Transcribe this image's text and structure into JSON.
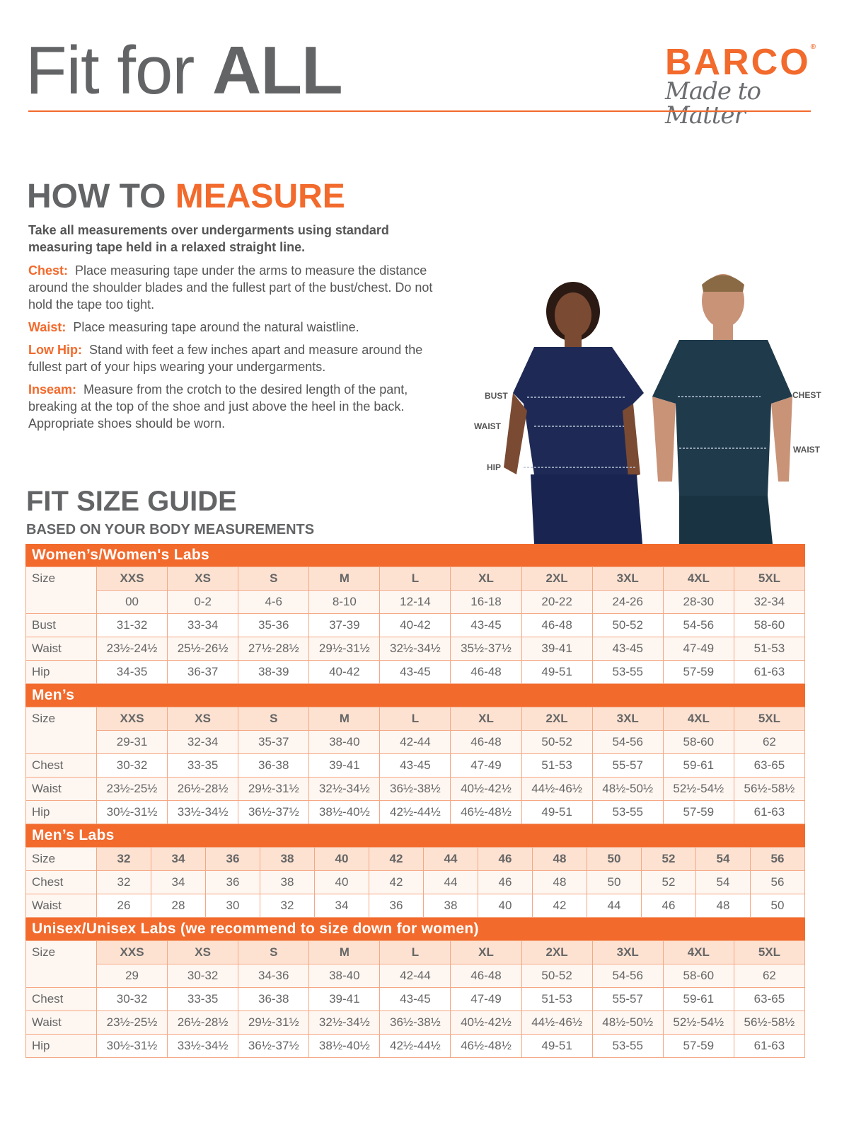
{
  "header": {
    "title_light": "Fit for ",
    "title_bold": "ALL",
    "logo_brand": "BARCO",
    "logo_reg": "®",
    "logo_tagline": "Made to Matter"
  },
  "colors": {
    "accent": "#f26a2c",
    "text": "#636466"
  },
  "how_to_measure": {
    "title_gray": "HOW TO ",
    "title_orange": "MEASURE",
    "intro": "Take all measurements over undergarments using standard measuring tape held in a relaxed straight line.",
    "items": [
      {
        "key": "Chest:",
        "text": "Place measuring tape under the arms to measure the distance around the shoulder blades and the fullest part of the bust/chest. Do not hold the tape too tight."
      },
      {
        "key": "Waist:",
        "text": "Place measuring tape around the natural waistline."
      },
      {
        "key": "Low Hip:",
        "text": "Stand with feet a few inches apart and measure around the fullest part of your hips wearing your undergarments."
      },
      {
        "key": "Inseam:",
        "text": "Measure from the crotch to the desired length of the pant, breaking at the top of the shoe and just above the heel in the back. Appropriate shoes should be worn."
      }
    ]
  },
  "figure_labels": {
    "bust": "BUST",
    "waist_w": "WAIST",
    "hip": "HIP",
    "chest": "CHEST",
    "waist_m": "WAIST"
  },
  "size_guide": {
    "title": "FIT SIZE GUIDE",
    "subtitle": "BASED ON YOUR BODY MEASUREMENTS"
  },
  "tables": [
    {
      "title": "Women’s/Women's Labs",
      "size_label": "Size",
      "sizes": [
        "XXS",
        "XS",
        "S",
        "M",
        "L",
        "XL",
        "2XL",
        "3XL",
        "4XL",
        "5XL"
      ],
      "numeric": [
        "00",
        "0-2",
        "4-6",
        "8-10",
        "12-14",
        "16-18",
        "20-22",
        "24-26",
        "28-30",
        "32-34"
      ],
      "rows": [
        {
          "label": "Bust",
          "values": [
            "31-32",
            "33-34",
            "35-36",
            "37-39",
            "40-42",
            "43-45",
            "46-48",
            "50-52",
            "54-56",
            "58-60"
          ]
        },
        {
          "label": "Waist",
          "values": [
            "23½-24½",
            "25½-26½",
            "27½-28½",
            "29½-31½",
            "32½-34½",
            "35½-37½",
            "39-41",
            "43-45",
            "47-49",
            "51-53"
          ]
        },
        {
          "label": "Hip",
          "values": [
            "34-35",
            "36-37",
            "38-39",
            "40-42",
            "43-45",
            "46-48",
            "49-51",
            "53-55",
            "57-59",
            "61-63"
          ]
        }
      ]
    },
    {
      "title": "Men’s",
      "size_label": "Size",
      "sizes": [
        "XXS",
        "XS",
        "S",
        "M",
        "L",
        "XL",
        "2XL",
        "3XL",
        "4XL",
        "5XL"
      ],
      "numeric": [
        "29-31",
        "32-34",
        "35-37",
        "38-40",
        "42-44",
        "46-48",
        "50-52",
        "54-56",
        "58-60",
        "62"
      ],
      "rows": [
        {
          "label": "Chest",
          "values": [
            "30-32",
            "33-35",
            "36-38",
            "39-41",
            "43-45",
            "47-49",
            "51-53",
            "55-57",
            "59-61",
            "63-65"
          ]
        },
        {
          "label": "Waist",
          "values": [
            "23½-25½",
            "26½-28½",
            "29½-31½",
            "32½-34½",
            "36½-38½",
            "40½-42½",
            "44½-46½",
            "48½-50½",
            "52½-54½",
            "56½-58½"
          ]
        },
        {
          "label": "Hip",
          "values": [
            "30½-31½",
            "33½-34½",
            "36½-37½",
            "38½-40½",
            "42½-44½",
            "46½-48½",
            "49-51",
            "53-55",
            "57-59",
            "61-63"
          ]
        }
      ]
    },
    {
      "title": "Men’s Labs",
      "size_label": "Size",
      "sizes": [
        "32",
        "34",
        "36",
        "38",
        "40",
        "42",
        "44",
        "46",
        "48",
        "50",
        "52",
        "54",
        "56"
      ],
      "rows": [
        {
          "label": "Chest",
          "values": [
            "32",
            "34",
            "36",
            "38",
            "40",
            "42",
            "44",
            "46",
            "48",
            "50",
            "52",
            "54",
            "56"
          ]
        },
        {
          "label": "Waist",
          "values": [
            "26",
            "28",
            "30",
            "32",
            "34",
            "36",
            "38",
            "40",
            "42",
            "44",
            "46",
            "48",
            "50"
          ]
        }
      ]
    },
    {
      "title": "Unisex/Unisex Labs (we recommend to size down for women)",
      "size_label": "Size",
      "sizes": [
        "XXS",
        "XS",
        "S",
        "M",
        "L",
        "XL",
        "2XL",
        "3XL",
        "4XL",
        "5XL"
      ],
      "numeric": [
        "29",
        "30-32",
        "34-36",
        "38-40",
        "42-44",
        "46-48",
        "50-52",
        "54-56",
        "58-60",
        "62"
      ],
      "rows": [
        {
          "label": "Chest",
          "values": [
            "30-32",
            "33-35",
            "36-38",
            "39-41",
            "43-45",
            "47-49",
            "51-53",
            "55-57",
            "59-61",
            "63-65"
          ]
        },
        {
          "label": "Waist",
          "values": [
            "23½-25½",
            "26½-28½",
            "29½-31½",
            "32½-34½",
            "36½-38½",
            "40½-42½",
            "44½-46½",
            "48½-50½",
            "52½-54½",
            "56½-58½"
          ]
        },
        {
          "label": "Hip",
          "values": [
            "30½-31½",
            "33½-34½",
            "36½-37½",
            "38½-40½",
            "42½-44½",
            "46½-48½",
            "49-51",
            "53-55",
            "57-59",
            "61-63"
          ]
        }
      ]
    }
  ]
}
